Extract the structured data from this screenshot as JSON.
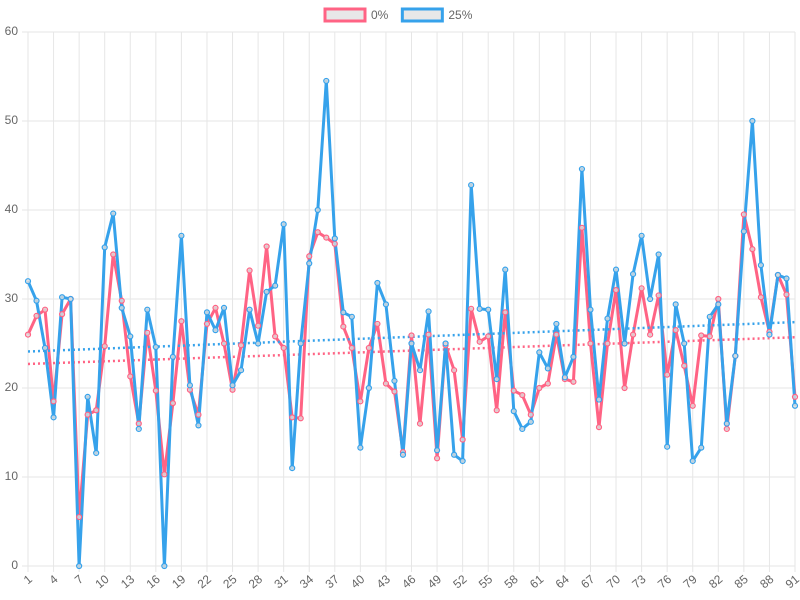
{
  "chart_data": {
    "type": "line",
    "categories": [
      1,
      null,
      null,
      4,
      null,
      null,
      7,
      null,
      null,
      10,
      null,
      null,
      13,
      null,
      null,
      16,
      null,
      null,
      19,
      null,
      null,
      22,
      null,
      null,
      25,
      null,
      null,
      28,
      null,
      null,
      31,
      null,
      null,
      34,
      null,
      null,
      37,
      null,
      null,
      40,
      null,
      null,
      43,
      null,
      null,
      46,
      null,
      null,
      49,
      null,
      null,
      52,
      null,
      null,
      55,
      null,
      null,
      58,
      null,
      null,
      61,
      null,
      null,
      64,
      null,
      null,
      67,
      null,
      null,
      70,
      null,
      null,
      73,
      null,
      null,
      76,
      null,
      null,
      79,
      null,
      null,
      82,
      null,
      null,
      85,
      null,
      null,
      88,
      null,
      null,
      91
    ],
    "series": [
      {
        "name": "0%",
        "color": "#ff6384",
        "trendline": [
          22.7,
          25.7
        ],
        "values": [
          26,
          28.1,
          28.8,
          18.5,
          28.3,
          30,
          5.5,
          17,
          17.5,
          24.7,
          35,
          29.8,
          21.3,
          16,
          26.2,
          19.7,
          10.3,
          18.3,
          27.5,
          19.8,
          17,
          27.2,
          29,
          25,
          19.8,
          24.8,
          33.2,
          27,
          35.9,
          25.8,
          24.5,
          16.7,
          16.6,
          34.8,
          37.5,
          36.9,
          36.2,
          26.9,
          24.5,
          18.5,
          24.5,
          27.2,
          20.5,
          19.6,
          12.8,
          25.9,
          16,
          26,
          12.1,
          24.8,
          22,
          14.2,
          28.9,
          25.2,
          25.8,
          17.5,
          28.5,
          19.7,
          19.2,
          17,
          20,
          20.5,
          26,
          21,
          20.7,
          38,
          25,
          15.6,
          25,
          31,
          20,
          26,
          31.2,
          26,
          30.4,
          21.5,
          26.5,
          22.5,
          18,
          25.9,
          25.8,
          30,
          15.4,
          23.6,
          39.5,
          35.6,
          30.2,
          26.3,
          32.7,
          30.5,
          19
        ]
      },
      {
        "name": "25%",
        "color": "#36a2eb",
        "trendline": [
          24.1,
          27.4
        ],
        "values": [
          32,
          29.8,
          24.5,
          16.7,
          30.2,
          30,
          0,
          19,
          12.7,
          35.8,
          39.6,
          29,
          25.8,
          15.4,
          28.8,
          24.6,
          0,
          23.5,
          37.1,
          20.3,
          15.8,
          28.5,
          26.5,
          29,
          20.3,
          22,
          28.8,
          25,
          30.8,
          31.5,
          38.4,
          11,
          25,
          34,
          40,
          54.5,
          36.8,
          28.5,
          28,
          13.3,
          20,
          31.8,
          29.4,
          20.8,
          12.5,
          25,
          22,
          28.6,
          13,
          25,
          12.5,
          11.8,
          42.8,
          28.9,
          28.8,
          21,
          33.3,
          17.4,
          15.4,
          16.2,
          24,
          22.2,
          27.2,
          21.2,
          23.5,
          44.6,
          28.8,
          18.7,
          27.8,
          33.3,
          25,
          32.8,
          37.1,
          30,
          35,
          13.4,
          29.4,
          25,
          11.8,
          13.3,
          28,
          29.4,
          16,
          23.6,
          37.6,
          50,
          33.8,
          26,
          32.7,
          32.3,
          18
        ]
      }
    ],
    "ylim": [
      0,
      60
    ],
    "yticks": [
      0,
      10,
      20,
      30,
      40,
      50,
      60
    ],
    "grid": true,
    "legend": "top"
  }
}
